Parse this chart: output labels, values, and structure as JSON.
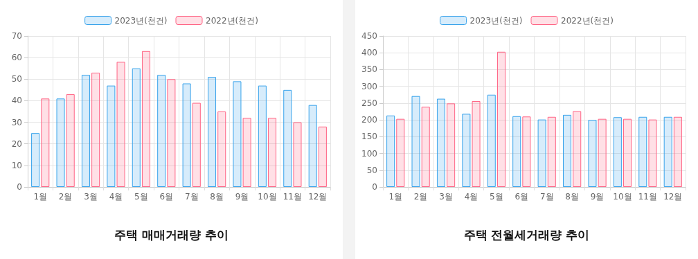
{
  "chart_data": [
    {
      "type": "bar",
      "title": "주택 매매거래량 추이",
      "categories": [
        "1월",
        "2월",
        "3월",
        "4월",
        "5월",
        "6월",
        "7월",
        "8월",
        "9월",
        "10월",
        "11월",
        "12월"
      ],
      "series": [
        {
          "name": "2023년(천건)",
          "color": "#36a2eb",
          "values": [
            25,
            41,
            52,
            47,
            55,
            52,
            48,
            51,
            49,
            47,
            45,
            38
          ]
        },
        {
          "name": "2022년(천건)",
          "color": "#ff6384",
          "values": [
            41,
            43,
            53,
            58,
            63,
            50,
            39,
            35,
            32,
            32,
            30,
            28
          ]
        }
      ],
      "ylim": [
        0,
        70
      ],
      "yticks": [
        0,
        10,
        20,
        30,
        40,
        50,
        60,
        70
      ],
      "grid": true,
      "legend": "top"
    },
    {
      "type": "bar",
      "title": "주택 전월세거래량 추이",
      "categories": [
        "1월",
        "2월",
        "3월",
        "4월",
        "5월",
        "6월",
        "7월",
        "8월",
        "9월",
        "10월",
        "11월",
        "12월"
      ],
      "series": [
        {
          "name": "2023년(천건)",
          "color": "#36a2eb",
          "values": [
            213,
            271,
            263,
            218,
            275,
            211,
            201,
            215,
            200,
            208,
            209,
            209
          ]
        },
        {
          "name": "2022년(천건)",
          "color": "#ff6384",
          "values": [
            203,
            239,
            249,
            256,
            403,
            210,
            209,
            226,
            203,
            203,
            201,
            209
          ]
        }
      ],
      "ylim": [
        0,
        450
      ],
      "yticks": [
        0,
        50,
        100,
        150,
        200,
        250,
        300,
        350,
        400,
        450
      ],
      "grid": true,
      "legend": "top"
    }
  ]
}
